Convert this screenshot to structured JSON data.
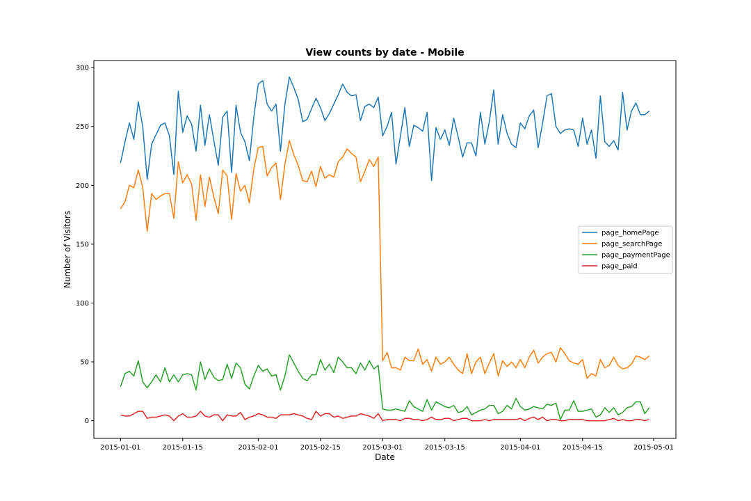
{
  "chart_data": {
    "type": "line",
    "title": "View counts by date - Mobile",
    "xlabel": "Date",
    "ylabel": "Number of Visitors",
    "x_start": "2015-01-01",
    "x_end": "2015-04-30",
    "xlim": [
      "2014-12-26",
      "2015-05-06"
    ],
    "ylim": [
      -15,
      306
    ],
    "x_ticks": [
      "2015-01-01",
      "2015-01-15",
      "2015-02-01",
      "2015-02-15",
      "2015-03-01",
      "2015-03-15",
      "2015-04-01",
      "2015-04-15",
      "2015-05-01"
    ],
    "y_ticks": [
      0,
      50,
      100,
      150,
      200,
      250,
      300
    ],
    "grid": false,
    "legend_position": "center-right",
    "series": [
      {
        "name": "page_homePage",
        "color": "#1f77b4",
        "values": [
          219,
          237,
          253,
          239,
          271,
          250,
          205,
          235,
          243,
          251,
          253,
          242,
          209,
          280,
          245,
          259,
          252,
          229,
          268,
          234,
          260,
          238,
          217,
          258,
          263,
          211,
          268,
          245,
          237,
          221,
          258,
          286,
          289,
          269,
          263,
          269,
          229,
          269,
          292,
          283,
          273,
          254,
          256,
          265,
          274,
          266,
          255,
          261,
          269,
          277,
          286,
          279,
          276,
          277,
          255,
          267,
          269,
          266,
          275,
          242,
          250,
          262,
          218,
          242,
          266,
          233,
          251,
          249,
          246,
          262,
          204,
          249,
          239,
          247,
          234,
          257,
          241,
          224,
          236,
          236,
          225,
          262,
          235,
          254,
          281,
          235,
          260,
          244,
          235,
          232,
          253,
          248,
          259,
          264,
          232,
          253,
          276,
          278,
          250,
          244,
          247,
          248,
          247,
          233,
          257,
          235,
          247,
          223,
          276,
          237,
          233,
          238,
          230,
          279,
          247,
          263,
          270,
          260,
          260,
          263
        ]
      },
      {
        "name": "page_searchPage",
        "color": "#ff7f0e",
        "values": [
          180,
          186,
          200,
          198,
          213,
          198,
          161,
          193,
          188,
          191,
          193,
          193,
          172,
          220,
          202,
          209,
          201,
          170,
          209,
          182,
          207,
          190,
          176,
          213,
          208,
          171,
          210,
          195,
          200,
          185,
          214,
          232,
          233,
          208,
          215,
          219,
          188,
          218,
          238,
          226,
          217,
          204,
          203,
          212,
          199,
          216,
          206,
          209,
          207,
          220,
          224,
          231,
          227,
          224,
          203,
          212,
          222,
          216,
          224,
          51,
          58,
          45,
          45,
          43,
          54,
          51,
          51,
          61,
          48,
          52,
          42,
          54,
          48,
          50,
          54,
          48,
          43,
          40,
          57,
          40,
          50,
          54,
          40,
          49,
          57,
          38,
          51,
          46,
          50,
          45,
          52,
          45,
          54,
          60,
          49,
          54,
          57,
          58,
          50,
          62,
          57,
          51,
          49,
          48,
          52,
          36,
          40,
          38,
          52,
          45,
          47,
          54,
          47,
          44,
          45,
          48,
          55,
          54,
          52,
          55
        ]
      },
      {
        "name": "page_paymentPage",
        "color": "#2ca02c",
        "values": [
          29,
          40,
          42,
          38,
          51,
          33,
          28,
          33,
          39,
          33,
          45,
          33,
          39,
          33,
          39,
          40,
          39,
          26,
          50,
          35,
          44,
          37,
          34,
          35,
          48,
          36,
          49,
          45,
          31,
          27,
          38,
          47,
          42,
          44,
          38,
          39,
          26,
          38,
          56,
          49,
          42,
          36,
          34,
          39,
          39,
          52,
          43,
          48,
          41,
          54,
          50,
          45,
          45,
          40,
          49,
          43,
          51,
          44,
          47,
          10,
          9,
          9,
          10,
          9,
          8,
          17,
          12,
          10,
          8,
          18,
          9,
          16,
          14,
          12,
          11,
          13,
          7,
          8,
          12,
          5,
          7,
          9,
          10,
          13,
          13,
          6,
          8,
          13,
          10,
          19,
          12,
          9,
          10,
          12,
          11,
          10,
          14,
          13,
          15,
          1,
          9,
          9,
          17,
          8,
          8,
          9,
          10,
          3,
          5,
          11,
          7,
          11,
          5,
          7,
          11,
          12,
          16,
          16,
          6,
          11
        ]
      },
      {
        "name": "page_paid",
        "color": "#d62728",
        "values": [
          5,
          4,
          4,
          6,
          8,
          8,
          2,
          3,
          3,
          4,
          5,
          4,
          0,
          4,
          6,
          3,
          3,
          4,
          8,
          4,
          3,
          5,
          5,
          0,
          5,
          4,
          4,
          7,
          1,
          3,
          4,
          6,
          5,
          3,
          3,
          2,
          5,
          5,
          5,
          6,
          5,
          4,
          2,
          1,
          8,
          4,
          6,
          6,
          3,
          4,
          2,
          3,
          4,
          4,
          6,
          5,
          4,
          2,
          6,
          0,
          1,
          1,
          1,
          0,
          2,
          2,
          1,
          1,
          0,
          1,
          3,
          1,
          1,
          2,
          2,
          0,
          1,
          2,
          2,
          0,
          0,
          0,
          1,
          0,
          1,
          1,
          1,
          1,
          1,
          1,
          2,
          0,
          2,
          3,
          1,
          3,
          0,
          1,
          1,
          0,
          0,
          1,
          1,
          1,
          1,
          0,
          0,
          0,
          0,
          0,
          1,
          2,
          0,
          1,
          0,
          0,
          1,
          1,
          0,
          1
        ]
      }
    ]
  }
}
